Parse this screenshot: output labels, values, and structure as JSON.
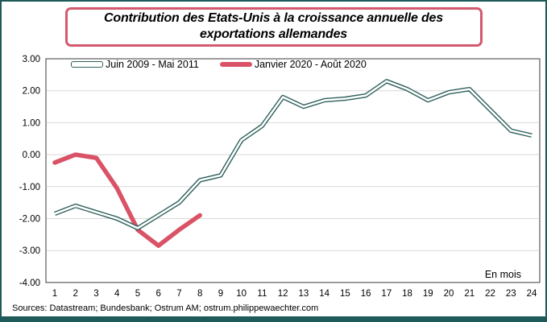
{
  "title": "Contribution des Etats-Unis à la croissance annuelle des exportations allemandes",
  "footer": {
    "sources": "Sources: Datastream; Bundesbank; Ostrum AM; ostrum.philippewaechter.com"
  },
  "colors": {
    "teal_line": "#2e605c",
    "red_line": "#da5265",
    "title_border": "#d25a6e",
    "outer_border": "#1e5a5a",
    "gridline": "#d9d9d9",
    "plot_border": "#3a3a3a"
  },
  "chart_data": {
    "type": "line",
    "title": "Contribution des Etats-Unis à la croissance annuelle des exportations allemandes",
    "xlabel": "",
    "ylabel": "",
    "x_annotation": "En mois",
    "x_categories": [
      1,
      2,
      3,
      4,
      5,
      6,
      7,
      8,
      9,
      10,
      11,
      12,
      13,
      14,
      15,
      16,
      17,
      18,
      19,
      20,
      21,
      22,
      23,
      24
    ],
    "ylim": [
      -4.0,
      3.0
    ],
    "ytick_step": 1.0,
    "ytick_labels": [
      "3.00",
      "2.00",
      "1.00",
      "0.00",
      "-1.00",
      "-2.00",
      "-3.00",
      "-4.00"
    ],
    "grid": "horizontal",
    "legend_position": "top-left-inside",
    "series": [
      {
        "name": "Juin 2009 - Mai 2011",
        "style": "double-outline",
        "color": "#2e605c",
        "values": [
          -1.85,
          -1.6,
          -1.8,
          -2.0,
          -2.3,
          -1.9,
          -1.5,
          -0.8,
          -0.65,
          0.45,
          0.9,
          1.8,
          1.5,
          1.7,
          1.75,
          1.85,
          2.3,
          2.05,
          1.7,
          1.95,
          2.05,
          1.4,
          0.75,
          0.6
        ]
      },
      {
        "name": "Janvier 2020 - Août 2020",
        "style": "solid-thick",
        "color": "#da5265",
        "values": [
          -0.25,
          0.0,
          -0.1,
          -1.05,
          -2.35,
          -2.85,
          -2.35,
          -1.9
        ]
      }
    ]
  }
}
